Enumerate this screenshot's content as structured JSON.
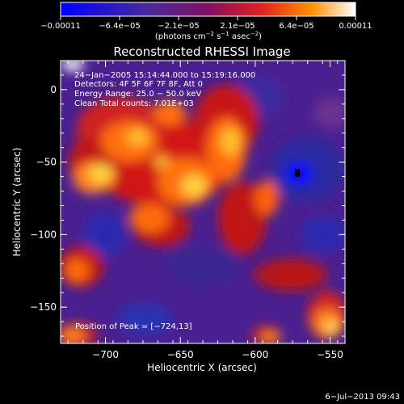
{
  "chart_data": {
    "type": "heatmap",
    "title": "Reconstructed RHESSI Image",
    "xlabel": "Heliocentric X (arcsec)",
    "ylabel": "Heliocentric Y (arcsec)",
    "xlim": [
      -730,
      -540
    ],
    "ylim": [
      -175,
      20
    ],
    "x_ticks": [
      -700,
      -650,
      -600,
      -550
    ],
    "x_tick_labels": [
      "−700",
      "−650",
      "−600",
      "−550"
    ],
    "y_ticks": [
      0,
      -50,
      -100,
      -150
    ],
    "y_tick_labels": [
      "0",
      "−50",
      "−100",
      "−150"
    ],
    "colorbar": {
      "min": -0.00011,
      "max": 0.00011,
      "tick_labels": [
        "−0.00011",
        "−6.4e−05",
        "−2.1e−05",
        "2.1e−05",
        "6.4e−05",
        "0.00011"
      ],
      "unit_main": "(photons cm",
      "unit_sup1": "−2",
      "unit_mid": " s",
      "unit_sup2": "−1",
      "unit_end": " asec",
      "unit_sup3": "−2",
      "unit_close": ")"
    },
    "annotations": {
      "time": "24−Jan−2005 15:14:44.000 to 15:19:16.000",
      "detectors": "Detectors: 4F 5F 6F 7F 8F, Att 0",
      "energy": "Energy Range: 25.0 − 50.0 keV",
      "clean": "Clean    Total counts: 7.01E+03",
      "peak": "Position of Peak = [−724,13]"
    },
    "peak_position": [
      -724,
      13
    ],
    "footer_date": "6−Jul−2013 09:43",
    "colors": {
      "negative": "#1a1aff",
      "low": "#4a2a9a",
      "zero": "#5a2080",
      "mid": "#e02020",
      "high": "#ff8000",
      "peak": "#ffff80"
    }
  }
}
